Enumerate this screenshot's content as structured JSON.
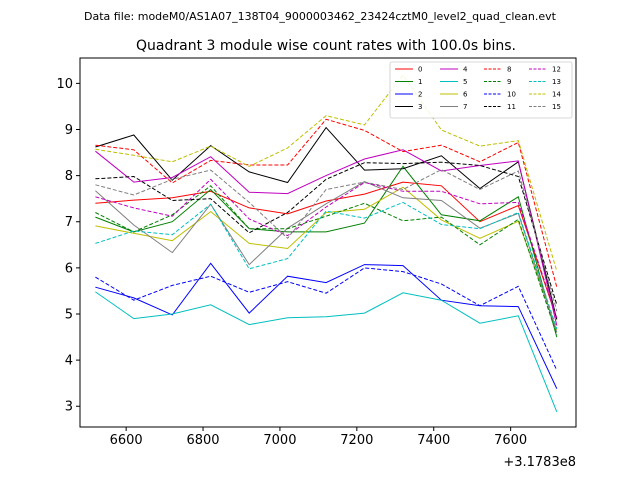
{
  "chart_data": {
    "type": "line",
    "suptitle": "Data file: modeM0/AS1A07_138T04_9000003462_23424cztM0_level2_quad_clean.evt",
    "title": "Quadrant 3 module wise count rates with 100.0s bins.",
    "xlabel": "",
    "ylabel": "",
    "x_offset_label": "+3.1783e8",
    "x": [
      6520,
      6620,
      6720,
      6820,
      6920,
      7020,
      7120,
      7220,
      7320,
      7420,
      7520,
      7620,
      7720
    ],
    "xlim": [
      6480,
      7770
    ],
    "ylim": [
      2.55,
      10.55
    ],
    "xticks": [
      6600,
      6800,
      7000,
      7200,
      7400,
      7600
    ],
    "xtick_labels": [
      "6600",
      "6800",
      "7000",
      "7200",
      "7400",
      "7600"
    ],
    "yticks": [
      3,
      4,
      5,
      6,
      7,
      8,
      9,
      10
    ],
    "ytick_labels": [
      "3",
      "4",
      "5",
      "6",
      "7",
      "8",
      "9",
      "10"
    ],
    "legend_position": "top-right",
    "series": [
      {
        "name": "0",
        "color": "#ff0000",
        "dash": "solid",
        "values": [
          7.4,
          7.47,
          7.52,
          7.66,
          7.3,
          7.17,
          7.45,
          7.6,
          7.86,
          7.78,
          7.0,
          7.35,
          4.9
        ]
      },
      {
        "name": "1",
        "color": "#008000",
        "dash": "solid",
        "values": [
          7.1,
          6.78,
          7.0,
          7.7,
          6.85,
          6.78,
          6.78,
          6.97,
          8.2,
          7.15,
          7.02,
          7.54,
          4.5
        ]
      },
      {
        "name": "2",
        "color": "#0000ff",
        "dash": "solid",
        "values": [
          5.58,
          5.35,
          4.98,
          6.1,
          5.02,
          5.82,
          5.68,
          6.07,
          6.05,
          5.3,
          5.18,
          5.16,
          3.38
        ]
      },
      {
        "name": "3",
        "color": "#000000",
        "dash": "solid",
        "values": [
          8.62,
          8.88,
          7.9,
          8.65,
          8.08,
          7.85,
          9.04,
          8.12,
          8.15,
          8.43,
          7.72,
          8.3,
          4.88
        ]
      },
      {
        "name": "4",
        "color": "#c000c0",
        "dash": "solid",
        "values": [
          8.53,
          7.86,
          7.96,
          8.41,
          7.64,
          7.61,
          8.0,
          8.36,
          8.56,
          8.1,
          8.22,
          8.32,
          4.75
        ]
      },
      {
        "name": "5",
        "color": "#00bfbf",
        "dash": "solid",
        "values": [
          5.48,
          4.9,
          5.0,
          5.2,
          4.77,
          4.92,
          4.94,
          5.02,
          5.46,
          5.3,
          4.8,
          4.96,
          2.88
        ]
      },
      {
        "name": "6",
        "color": "#bfbf00",
        "dash": "solid",
        "values": [
          6.91,
          6.75,
          6.59,
          7.22,
          6.53,
          6.42,
          7.2,
          7.27,
          7.75,
          7.04,
          6.64,
          7.01,
          4.65
        ]
      },
      {
        "name": "7",
        "color": "#808080",
        "dash": "solid",
        "values": [
          7.67,
          6.93,
          6.33,
          7.38,
          6.07,
          6.86,
          7.39,
          7.87,
          7.52,
          7.46,
          6.86,
          7.18,
          4.6
        ]
      },
      {
        "name": "8",
        "color": "#ff0000",
        "dash": "dashed",
        "values": [
          8.66,
          8.56,
          7.84,
          8.33,
          8.23,
          8.23,
          9.22,
          8.98,
          8.52,
          8.66,
          8.3,
          8.72,
          5.58
        ]
      },
      {
        "name": "9",
        "color": "#008000",
        "dash": "dashed",
        "values": [
          7.2,
          6.78,
          7.15,
          7.78,
          6.85,
          6.85,
          7.12,
          7.4,
          7.02,
          7.1,
          6.5,
          7.05,
          4.55
        ]
      },
      {
        "name": "10",
        "color": "#0000ff",
        "dash": "dashed",
        "values": [
          5.8,
          5.3,
          5.62,
          5.82,
          5.47,
          5.7,
          5.45,
          6.0,
          5.92,
          5.65,
          5.18,
          5.6,
          3.78
        ]
      },
      {
        "name": "11",
        "color": "#000000",
        "dash": "dashed",
        "values": [
          7.93,
          7.98,
          7.46,
          7.5,
          6.76,
          7.2,
          7.92,
          8.28,
          8.26,
          8.29,
          8.22,
          7.98,
          5.2
        ]
      },
      {
        "name": "12",
        "color": "#c000c0",
        "dash": "dashed",
        "values": [
          7.54,
          7.3,
          7.12,
          7.92,
          7.06,
          6.7,
          7.32,
          7.85,
          7.66,
          7.66,
          7.39,
          7.42,
          4.92
        ]
      },
      {
        "name": "13",
        "color": "#00bfbf",
        "dash": "dashed",
        "values": [
          6.53,
          6.8,
          6.72,
          7.38,
          5.98,
          6.2,
          7.23,
          7.08,
          7.42,
          6.94,
          6.85,
          7.2,
          4.68
        ]
      },
      {
        "name": "14",
        "color": "#bfbf00",
        "dash": "dashed",
        "values": [
          8.57,
          8.44,
          8.3,
          8.64,
          8.2,
          8.6,
          9.3,
          9.1,
          10.18,
          8.99,
          8.64,
          8.76,
          5.93
        ]
      },
      {
        "name": "15",
        "color": "#808080",
        "dash": "dashed",
        "values": [
          7.8,
          7.58,
          7.92,
          8.12,
          7.42,
          6.64,
          7.7,
          7.86,
          7.7,
          8.13,
          7.7,
          8.1,
          5.06
        ]
      }
    ]
  }
}
